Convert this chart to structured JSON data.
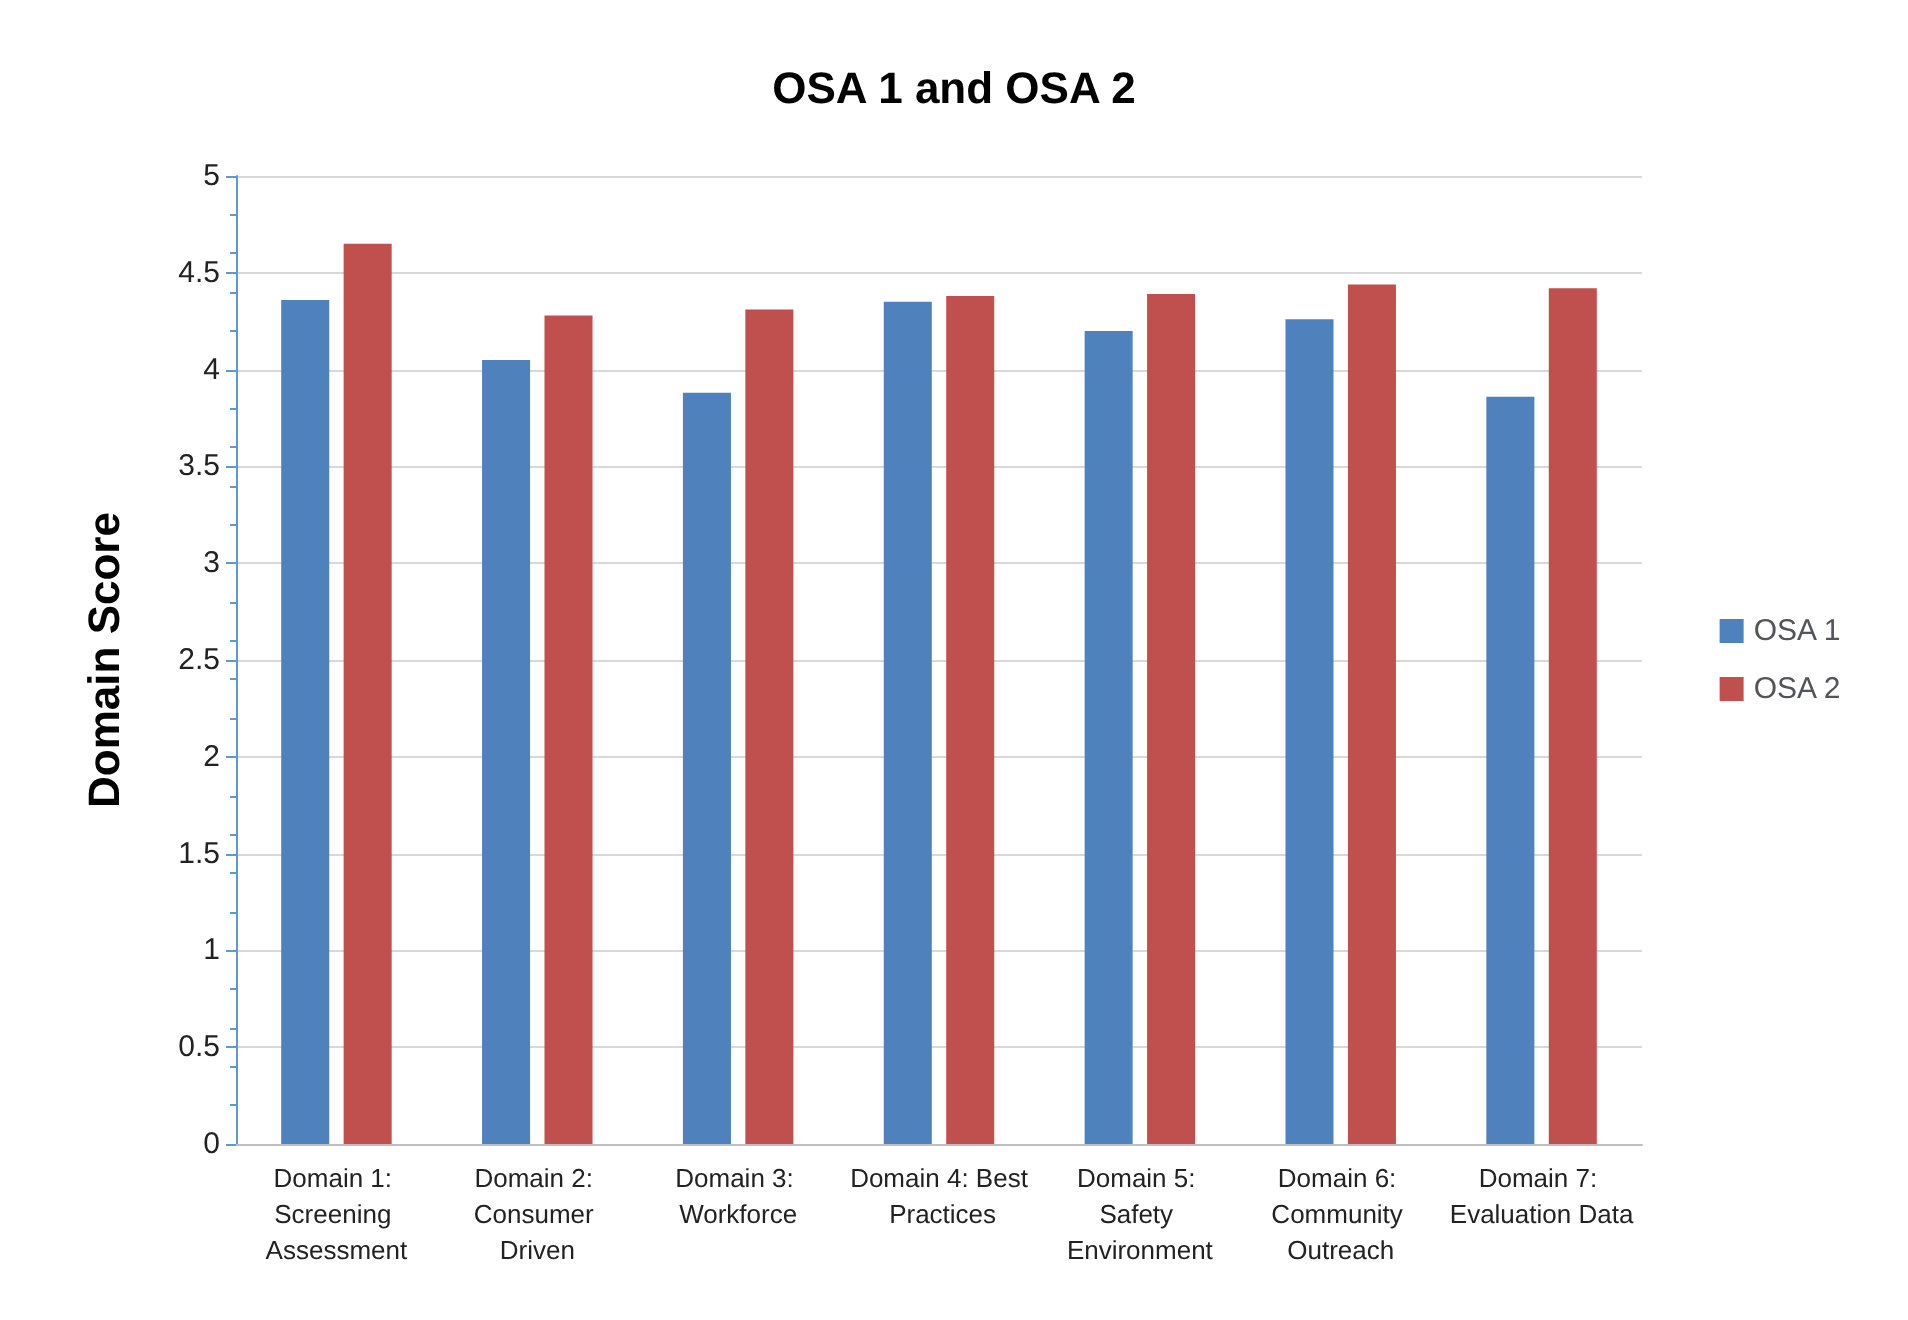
{
  "chart_data": {
    "type": "bar",
    "title": "OSA 1 and OSA 2",
    "ylabel": "Domain Score",
    "categories": [
      "Domain 1: Screening Assessment",
      "Domain 2: Consumer Driven",
      "Domain 3: Workforce",
      "Domain 4: Best Practices",
      "Domain 5: Safety Environment",
      "Domain 6: Community Outreach",
      "Domain 7: Evaluation Data"
    ],
    "series": [
      {
        "name": "OSA 1",
        "color": "#4f81bd",
        "values": [
          4.36,
          4.05,
          3.88,
          4.35,
          4.2,
          4.26,
          3.86
        ]
      },
      {
        "name": "OSA 2",
        "color": "#c0504d",
        "values": [
          4.65,
          4.28,
          4.31,
          4.38,
          4.39,
          4.44,
          4.42
        ]
      }
    ],
    "ylim": [
      0,
      5
    ],
    "yticks": [
      0,
      0.5,
      1,
      1.5,
      2,
      2.5,
      3,
      3.5,
      4,
      4.5,
      5
    ],
    "grid": "y",
    "legend": "right"
  }
}
